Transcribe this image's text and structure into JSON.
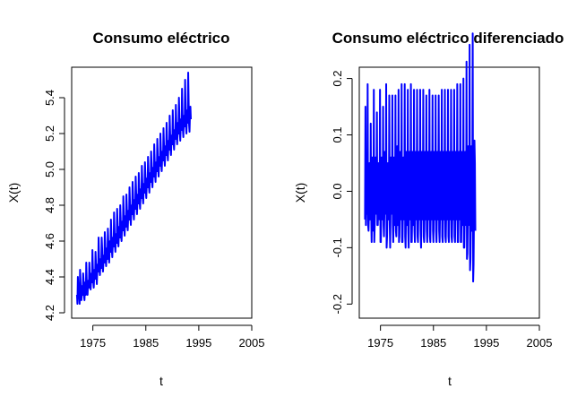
{
  "chart_data": [
    {
      "type": "line",
      "title": "Consumo eléctrico",
      "xlabel": "t",
      "ylabel": "X(t)",
      "xlim": [
        1971,
        2005
      ],
      "ylim": [
        4.17,
        5.57
      ],
      "xticks": [
        1975,
        1985,
        1995,
        2005
      ],
      "xtick_labels": [
        "1975",
        "1985",
        "1995",
        "2005"
      ],
      "yticks": [
        4.2,
        4.4,
        4.6,
        4.8,
        5.0,
        5.2,
        5.4
      ],
      "ytick_labels": [
        "4.2",
        "4.4",
        "4.6",
        "4.8",
        "5.0",
        "5.2",
        "5.4"
      ],
      "grid": false,
      "color": "#0000ff",
      "series": [
        {
          "x_start": 1972.0,
          "x_step": 0.08333,
          "values": [
            4.3,
            4.25,
            4.4,
            4.34,
            4.31,
            4.29,
            4.25,
            4.44,
            4.38,
            4.31,
            4.27,
            4.32,
            4.35,
            4.3,
            4.42,
            4.38,
            4.29,
            4.27,
            4.33,
            4.37,
            4.3,
            4.48,
            4.39,
            4.33,
            4.3,
            4.36,
            4.38,
            4.34,
            4.48,
            4.42,
            4.36,
            4.33,
            4.38,
            4.42,
            4.37,
            4.55,
            4.46,
            4.37,
            4.34,
            4.4,
            4.44,
            4.39,
            4.54,
            4.48,
            4.4,
            4.36,
            4.43,
            4.47,
            4.43,
            4.62,
            4.52,
            4.44,
            4.41,
            4.46,
            4.5,
            4.45,
            4.62,
            4.56,
            4.46,
            4.43,
            4.49,
            4.52,
            4.48,
            4.65,
            4.59,
            4.5,
            4.46,
            4.52,
            4.56,
            4.5,
            4.67,
            4.6,
            4.52,
            4.48,
            4.56,
            4.6,
            4.54,
            4.72,
            4.63,
            4.55,
            4.51,
            4.58,
            4.62,
            4.57,
            4.76,
            4.67,
            4.58,
            4.54,
            4.6,
            4.64,
            4.59,
            4.78,
            4.7,
            4.6,
            4.57,
            4.64,
            4.68,
            4.62,
            4.8,
            4.73,
            4.63,
            4.6,
            4.67,
            4.71,
            4.66,
            4.85,
            4.76,
            4.67,
            4.63,
            4.7,
            4.74,
            4.68,
            4.86,
            4.79,
            4.7,
            4.66,
            4.73,
            4.77,
            4.72,
            4.9,
            4.82,
            4.73,
            4.69,
            4.76,
            4.8,
            4.75,
            4.93,
            4.86,
            4.76,
            4.72,
            4.79,
            4.83,
            4.78,
            4.96,
            4.88,
            4.79,
            4.75,
            4.82,
            4.86,
            4.81,
            4.98,
            4.91,
            4.82,
            4.78,
            4.85,
            4.89,
            4.84,
            5.02,
            4.94,
            4.85,
            4.81,
            4.88,
            4.92,
            4.87,
            5.04,
            4.97,
            4.88,
            4.84,
            4.91,
            4.95,
            4.9,
            5.07,
            5.0,
            4.91,
            4.87,
            4.94,
            4.98,
            4.93,
            5.1,
            5.03,
            4.94,
            4.9,
            4.97,
            5.01,
            4.96,
            5.14,
            5.06,
            4.97,
            4.93,
            5.0,
            5.04,
            4.99,
            5.17,
            5.09,
            5.0,
            4.96,
            5.03,
            5.07,
            5.02,
            5.2,
            5.12,
            5.03,
            4.99,
            5.06,
            5.1,
            5.05,
            5.23,
            5.15,
            5.06,
            5.02,
            5.09,
            5.13,
            5.08,
            5.26,
            5.18,
            5.09,
            5.05,
            5.12,
            5.16,
            5.11,
            5.3,
            5.21,
            5.12,
            5.08,
            5.15,
            5.19,
            5.14,
            5.33,
            5.24,
            5.15,
            5.11,
            5.18,
            5.22,
            5.17,
            5.36,
            5.27,
            5.18,
            5.14,
            5.21,
            5.26,
            5.2,
            5.4,
            5.3,
            5.2,
            5.16,
            5.23,
            5.28,
            5.22,
            5.45,
            5.33,
            5.22,
            5.18,
            5.26,
            5.3,
            5.24,
            5.5,
            5.36,
            5.24,
            5.2,
            5.28,
            5.33,
            5.26,
            5.54,
            5.38,
            5.25,
            5.21,
            5.3,
            5.35,
            5.28
          ]
        }
      ]
    },
    {
      "type": "line",
      "title": "Consumo eléctrico diferenciado",
      "xlabel": "t",
      "ylabel": "X(t)",
      "xlim": [
        1971,
        2005
      ],
      "ylim": [
        -0.225,
        0.22
      ],
      "xticks": [
        1975,
        1985,
        1995,
        2005
      ],
      "xtick_labels": [
        "1975",
        "1985",
        "1995",
        "2005"
      ],
      "yticks": [
        -0.2,
        -0.1,
        0.0,
        0.1,
        0.2
      ],
      "ytick_labels": [
        "-0.2",
        "-0.1",
        "0.0",
        "0.1",
        "0.2"
      ],
      "grid": false,
      "color": "#0000ff",
      "series": [
        {
          "x_start": 1972.08,
          "x_step": 0.08333,
          "values": [
            -0.05,
            0.15,
            -0.06,
            -0.03,
            -0.02,
            -0.04,
            0.19,
            -0.06,
            -0.07,
            -0.04,
            0.05,
            0.03,
            -0.05,
            0.12,
            -0.04,
            -0.09,
            -0.02,
            0.06,
            0.04,
            -0.07,
            0.18,
            -0.09,
            -0.06,
            -0.03,
            0.06,
            0.02,
            -0.04,
            0.14,
            -0.06,
            -0.06,
            -0.03,
            0.05,
            0.04,
            -0.05,
            0.18,
            -0.09,
            -0.09,
            -0.03,
            0.06,
            0.04,
            -0.05,
            0.15,
            -0.06,
            -0.08,
            -0.04,
            0.07,
            0.04,
            -0.04,
            0.19,
            -0.1,
            -0.08,
            -0.03,
            0.05,
            0.04,
            -0.05,
            0.17,
            -0.06,
            -0.1,
            -0.03,
            0.06,
            0.03,
            -0.04,
            0.17,
            -0.06,
            -0.09,
            -0.04,
            0.06,
            0.04,
            -0.06,
            0.17,
            -0.07,
            -0.08,
            -0.04,
            0.08,
            0.04,
            -0.06,
            0.18,
            -0.09,
            -0.08,
            -0.04,
            0.07,
            0.04,
            -0.05,
            0.19,
            -0.09,
            -0.09,
            -0.04,
            0.06,
            0.04,
            -0.05,
            0.19,
            -0.08,
            -0.1,
            -0.03,
            0.07,
            0.04,
            -0.06,
            0.18,
            -0.07,
            -0.1,
            -0.03,
            0.07,
            0.04,
            -0.05,
            0.19,
            -0.09,
            -0.09,
            -0.04,
            0.07,
            0.04,
            -0.06,
            0.18,
            -0.07,
            -0.09,
            -0.04,
            0.07,
            0.04,
            -0.05,
            0.18,
            -0.08,
            -0.09,
            -0.04,
            0.07,
            0.04,
            -0.05,
            0.18,
            -0.07,
            -0.1,
            -0.04,
            0.07,
            0.04,
            -0.05,
            0.18,
            -0.08,
            -0.09,
            -0.04,
            0.07,
            0.04,
            -0.05,
            0.17,
            -0.07,
            -0.09,
            -0.04,
            0.07,
            0.04,
            -0.05,
            0.18,
            -0.08,
            -0.09,
            -0.04,
            0.07,
            0.04,
            -0.05,
            0.17,
            -0.07,
            -0.09,
            -0.04,
            0.07,
            0.04,
            -0.05,
            0.17,
            -0.07,
            -0.09,
            -0.04,
            0.07,
            0.04,
            -0.05,
            0.17,
            -0.07,
            -0.09,
            -0.04,
            0.07,
            0.04,
            -0.05,
            0.18,
            -0.08,
            -0.09,
            -0.04,
            0.07,
            0.04,
            -0.05,
            0.18,
            -0.08,
            -0.09,
            -0.04,
            0.07,
            0.04,
            -0.05,
            0.18,
            -0.08,
            -0.09,
            -0.04,
            0.07,
            0.04,
            -0.05,
            0.18,
            -0.08,
            -0.09,
            -0.04,
            0.07,
            0.04,
            -0.05,
            0.18,
            -0.08,
            -0.09,
            -0.04,
            0.07,
            0.04,
            -0.05,
            0.19,
            -0.09,
            -0.09,
            -0.04,
            0.07,
            0.04,
            -0.05,
            0.19,
            -0.09,
            -0.09,
            -0.04,
            0.07,
            0.04,
            -0.06,
            0.2,
            -0.1,
            -0.1,
            -0.04,
            0.07,
            0.05,
            -0.06,
            0.23,
            -0.12,
            -0.11,
            -0.04,
            0.08,
            0.05,
            -0.06,
            0.26,
            -0.14,
            -0.12,
            -0.04,
            0.08,
            0.05,
            -0.07,
            0.28,
            -0.16,
            -0.13,
            -0.04,
            0.09,
            0.05,
            -0.07
          ]
        }
      ]
    }
  ]
}
